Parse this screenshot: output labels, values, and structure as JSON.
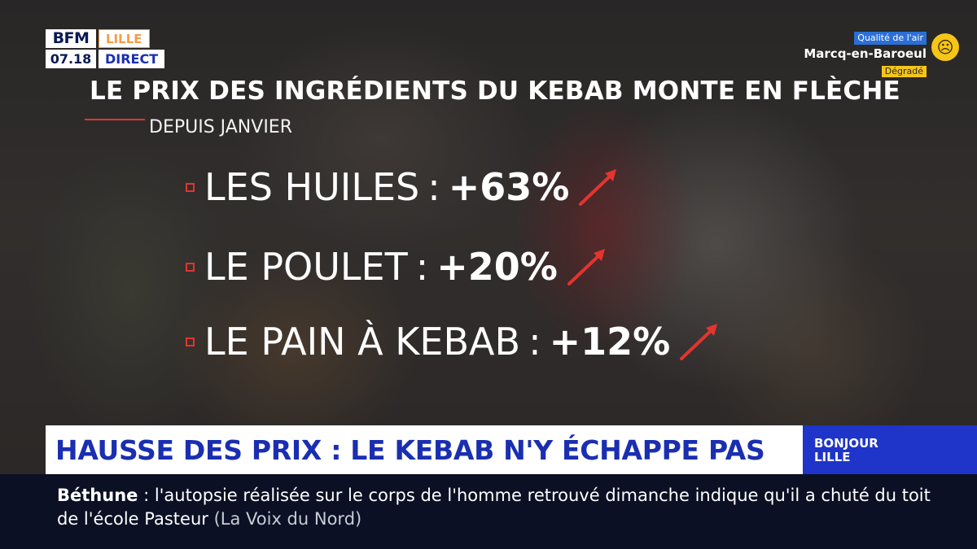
{
  "logo": {
    "brand": "BFM",
    "city": "LILLE",
    "time": "07.18",
    "status": "DIRECT"
  },
  "air_quality": {
    "label": "Qualité de l'air",
    "place": "Marcq-en-Baroeul",
    "state": "Dégradé",
    "icon": "sad-face-icon"
  },
  "headline": "LE PRIX DES INGRÉDIENTS DU KEBAB MONTE EN FLÈCHE",
  "subline": "DEPUIS JANVIER",
  "items": [
    {
      "label": "LES HUILES",
      "sep": ":",
      "value": "+63%"
    },
    {
      "label": "LE POULET",
      "sep": ":",
      "value": "+20%"
    },
    {
      "label": "LE PAIN À KEBAB",
      "sep": ":",
      "value": "+12%"
    }
  ],
  "banner": "HAUSSE DES PRIX : LE KEBAB N'Y ÉCHAPPE PAS",
  "show": {
    "line1": "BONJOUR",
    "line2": "LILLE"
  },
  "ticker": {
    "place": "Béthune",
    "sep": " : ",
    "text": "l'autopsie réalisée sur le corps de l'homme retrouvé dimanche indique qu'il a chuté du toit de l'école Pasteur",
    "source": "(La Voix du Nord)"
  },
  "colors": {
    "accent_red": "#e3342f",
    "brand_blue": "#1a2fb0",
    "ticker_bg": "#0b1024"
  }
}
